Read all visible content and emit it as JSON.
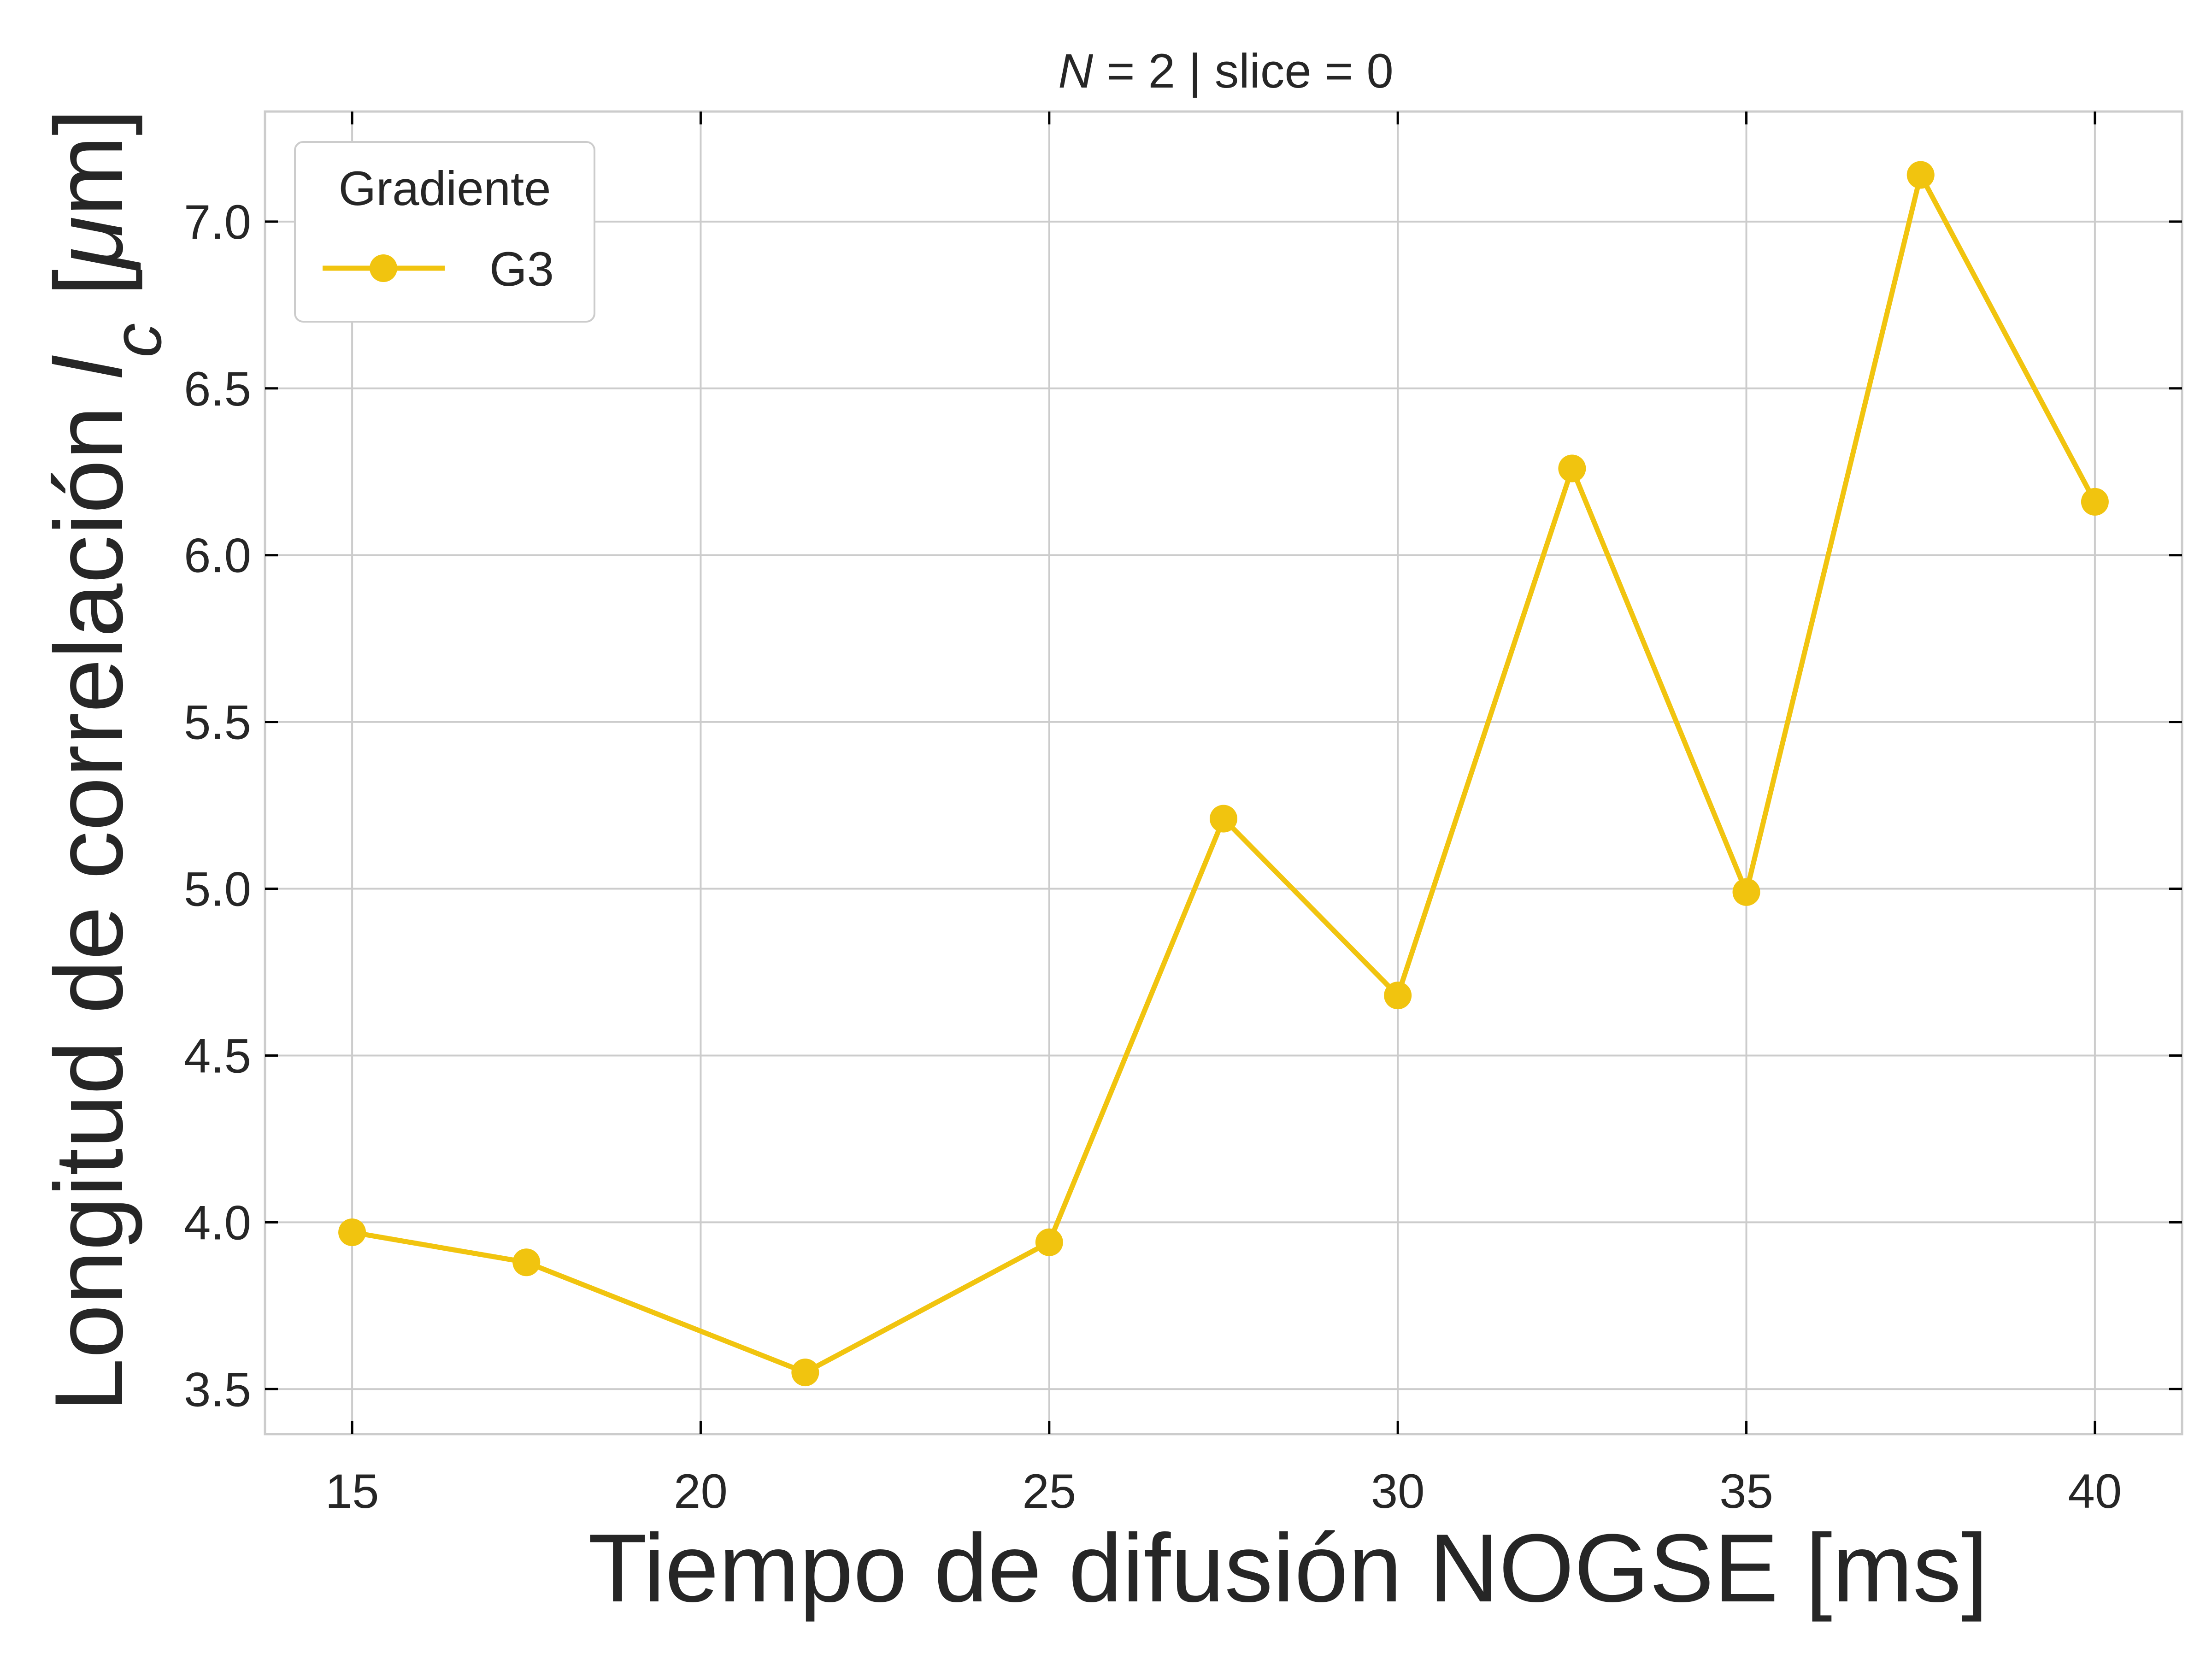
{
  "chart_data": {
    "type": "line",
    "title": {
      "variable": "N",
      "rest": " = 2 | slice = 0"
    },
    "xlabel": "Tiempo de difusión NOGSE [ms]",
    "ylabel": {
      "prefix": "Longitud de correlación ",
      "symbol": "l",
      "subscript": "c",
      "bracket_open": " [",
      "unit_symbol": "μ",
      "unit_rest": "m]"
    },
    "xlim": [
      13.75,
      41.25
    ],
    "ylim": [
      3.365,
      7.33
    ],
    "xticks": [
      15,
      20,
      25,
      30,
      35,
      40
    ],
    "xtick_labels": [
      "15",
      "20",
      "25",
      "30",
      "35",
      "40"
    ],
    "yticks": [
      3.5,
      4.0,
      4.5,
      5.0,
      5.5,
      6.0,
      6.5,
      7.0
    ],
    "ytick_labels": [
      "3.5",
      "4.0",
      "4.5",
      "5.0",
      "5.5",
      "6.0",
      "6.5",
      "7.0"
    ],
    "grid": true,
    "legend": {
      "title": "Gradiente",
      "placement": "top-left"
    },
    "series": [
      {
        "name": "G3",
        "color": "#f1c40f",
        "marker": "circle",
        "x": [
          15,
          17.5,
          21.5,
          25,
          27.5,
          30,
          32.5,
          35,
          37.5,
          40
        ],
        "y": [
          3.97,
          3.88,
          3.55,
          3.94,
          5.21,
          4.68,
          6.26,
          4.99,
          7.14,
          6.16
        ]
      }
    ]
  },
  "colors": {
    "grid": "#cccccc",
    "axes_frame": "#cccccc",
    "tick_marks": "#000000",
    "text": "#262626",
    "legend_frame": "#cccccc"
  }
}
